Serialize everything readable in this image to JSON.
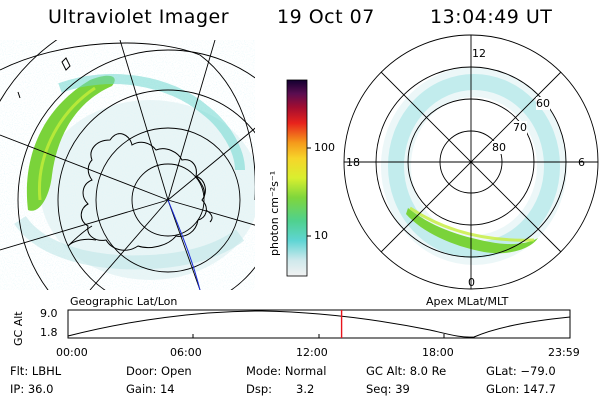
{
  "header": {
    "instrument": "Ultraviolet Imager",
    "date": "19 Oct 07",
    "time": "13:04:49 UT"
  },
  "colorbar": {
    "unit_label": "photon cm⁻²s⁻¹",
    "ticks": [
      "100",
      "10"
    ]
  },
  "left_map": {
    "label": "Geographic Lat/Lon"
  },
  "right_map": {
    "label": "Apex MLat/MLT",
    "mlt_labels": {
      "top": "12",
      "left": "18",
      "right": "6",
      "bottom": "0"
    },
    "lat_labels": [
      "60",
      "70",
      "80"
    ]
  },
  "altitude_plot": {
    "ylabel": "GC Alt",
    "yticks": [
      "9.0",
      "1.8"
    ],
    "xticks": [
      "00:00",
      "06:00",
      "12:00",
      "18:00",
      "23:59"
    ],
    "current_time_marker_hours": 13.08
  },
  "info": {
    "flt": "Flt: LBHL",
    "door": "Door: Open",
    "mode": "Mode: Normal",
    "gc_alt": "GC Alt: 8.0 Re",
    "glat": "GLat: −79.0",
    "ip": "IP: 36.0",
    "gain": "Gain: 14",
    "dsp_label": "Dsp:",
    "dsp_value": "3.2",
    "seq": "Seq: 39",
    "glon": "GLon: 147.7"
  },
  "colors": {
    "marker": "#e8141c",
    "aurora_bright": "#7ad33a",
    "aurora_dim": "#58d4d4",
    "track": "#1a2bd8"
  }
}
